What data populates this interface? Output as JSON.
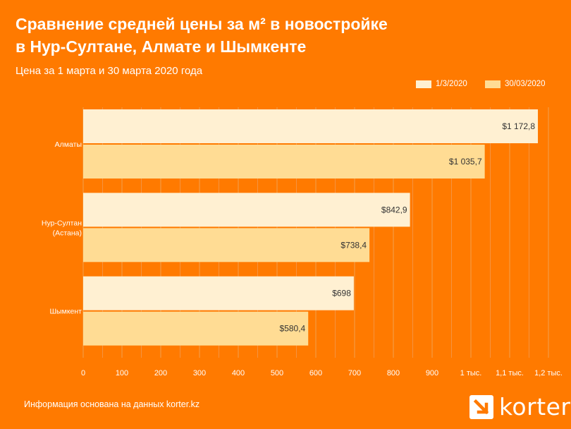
{
  "chart_data": {
    "type": "bar",
    "orientation": "horizontal",
    "title": "Сравнение средней цены за м² в новостройке\nв Нур-Султане, Алмате и Шымкенте",
    "subtitle": "Цена за 1 марта  и 30 марта 2020 года",
    "categories": [
      "Алматы",
      "Нур-Султан\n(Астана)",
      "Шымкент"
    ],
    "series": [
      {
        "name": "1/3/2020",
        "color": "#FFF0D2",
        "values": [
          1172.8,
          842.9,
          698
        ],
        "labels": [
          "$1 172,8",
          "$842,9",
          "$698"
        ]
      },
      {
        "name": "30/03/2020",
        "color": "#FFDC94",
        "values": [
          1035.7,
          738.4,
          580.4
        ],
        "labels": [
          "$1 035,7",
          "$738,4",
          "$580,4"
        ]
      }
    ],
    "xlim": [
      0,
      1200
    ],
    "xticks": [
      0,
      100,
      200,
      300,
      400,
      500,
      600,
      700,
      800,
      900,
      1000,
      1100,
      1200
    ],
    "xtick_labels": [
      "0",
      "100",
      "200",
      "300",
      "400",
      "500",
      "600",
      "700",
      "800",
      "900",
      "1 тыс.",
      "1,1 тыс.",
      "1,2 тыс."
    ],
    "grid": true,
    "legend_position": "top-right"
  },
  "footer": {
    "source": "Информация основана на данных korter.kz",
    "logo_text": "korter"
  }
}
